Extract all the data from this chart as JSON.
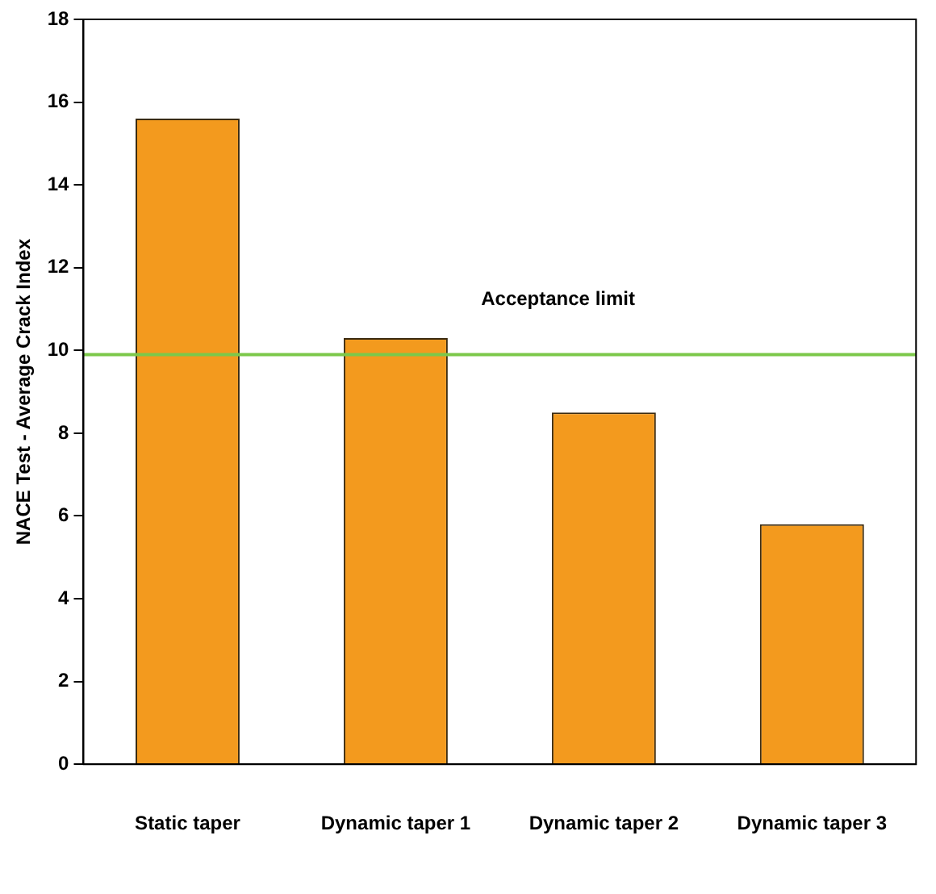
{
  "chart_data": {
    "type": "bar",
    "ylabel": "NACE Test - Average Crack Index",
    "categories": [
      "Static taper",
      "Dynamic taper 1",
      "Dynamic taper 2",
      "Dynamic taper 3"
    ],
    "values": [
      15.6,
      10.3,
      8.5,
      5.8
    ],
    "color": "#f39a1e",
    "ylim": [
      0,
      18
    ],
    "yticks": [
      0,
      2,
      4,
      6,
      8,
      10,
      12,
      14,
      16,
      18
    ],
    "grid": false,
    "legend": false,
    "ref_lines": [
      {
        "axis": "y",
        "value": 9.9,
        "label": "Acceptance limit",
        "color": "#7cc84a",
        "line_style": "solid"
      }
    ]
  }
}
